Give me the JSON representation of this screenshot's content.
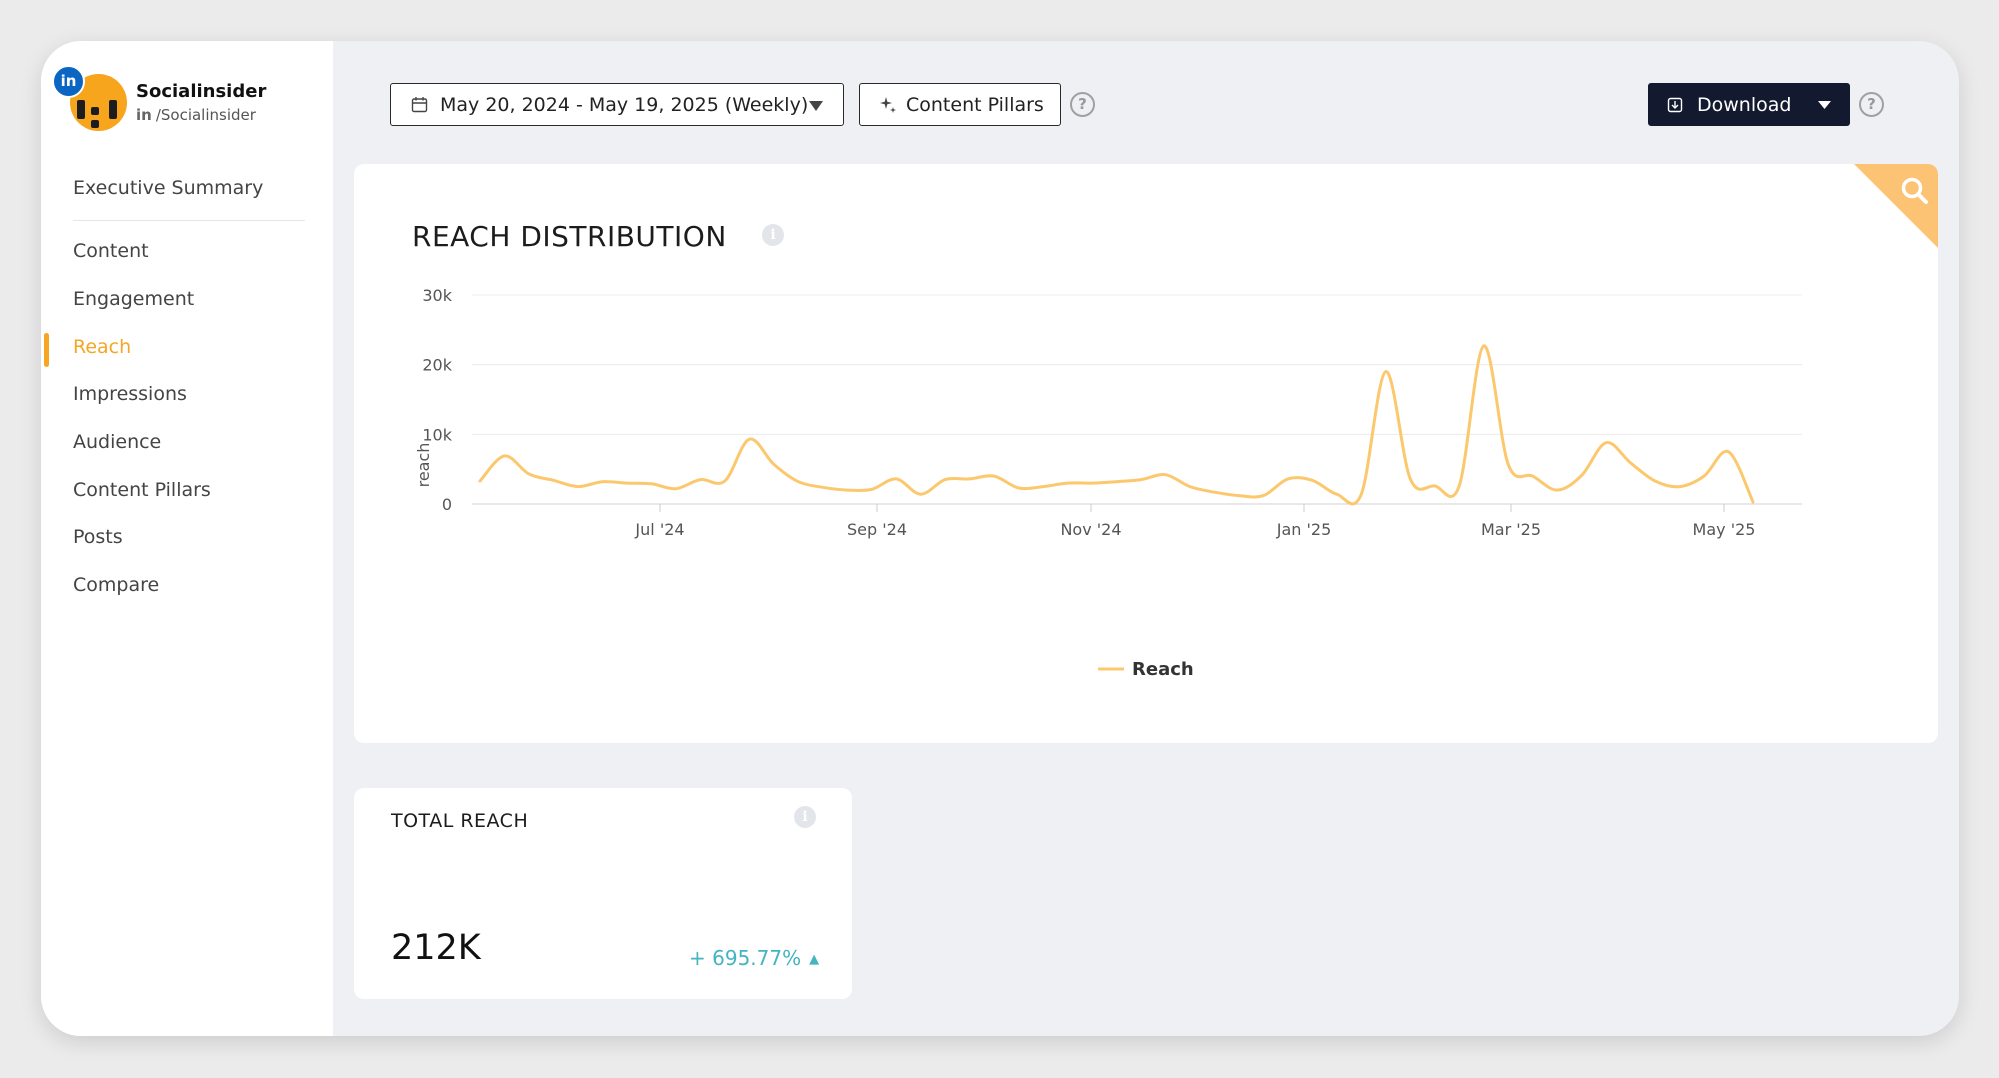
{
  "profile": {
    "name": "Socialinsider",
    "network_badge": "in",
    "handle_prefix": "in",
    "handle": "/Socialinsider"
  },
  "sidebar": {
    "items": [
      {
        "label": "Executive Summary"
      },
      {
        "label": "Content"
      },
      {
        "label": "Engagement"
      },
      {
        "label": "Reach"
      },
      {
        "label": "Impressions"
      },
      {
        "label": "Audience"
      },
      {
        "label": "Content Pillars"
      },
      {
        "label": "Posts"
      },
      {
        "label": "Compare"
      }
    ],
    "active": "Reach"
  },
  "toolbar": {
    "date_range": "May 20, 2024 - May 19, 2025 (Weekly)",
    "content_pillars": "Content Pillars",
    "download": "Download",
    "help_glyph": "?"
  },
  "chart_card": {
    "title": "REACH DISTRIBUTION"
  },
  "chart_data": {
    "type": "line",
    "title": "REACH DISTRIBUTION",
    "ylabel": "reach",
    "xlabel": "",
    "ylim": [
      0,
      30000
    ],
    "yticks": [
      0,
      10000,
      20000,
      30000
    ],
    "ytick_labels": [
      "0",
      "10k",
      "20k",
      "30k"
    ],
    "x_tick_labels": [
      "Jul '24",
      "Sep '24",
      "Nov '24",
      "Jan '25",
      "Mar '25",
      "May '25"
    ],
    "legend_position": "bottom",
    "grid": true,
    "color": "#fcc86e",
    "series": [
      {
        "name": "Reach",
        "values": [
          3300,
          6900,
          4300,
          3400,
          2500,
          3200,
          3000,
          2900,
          2200,
          3500,
          3300,
          9300,
          5700,
          3200,
          2400,
          2000,
          2100,
          3600,
          1400,
          3500,
          3600,
          4000,
          2300,
          2500,
          3000,
          3000,
          3200,
          3500,
          4200,
          2500,
          1700,
          1200,
          1200,
          3600,
          3400,
          1400,
          1400,
          19000,
          3600,
          2600,
          2600,
          22700,
          5700,
          4000,
          2000,
          4100,
          8800,
          5900,
          3300,
          2500,
          4000,
          7500,
          300
        ]
      }
    ]
  },
  "total_reach": {
    "title": "TOTAL REACH",
    "value": "212K",
    "change": "+ 695.77%"
  }
}
